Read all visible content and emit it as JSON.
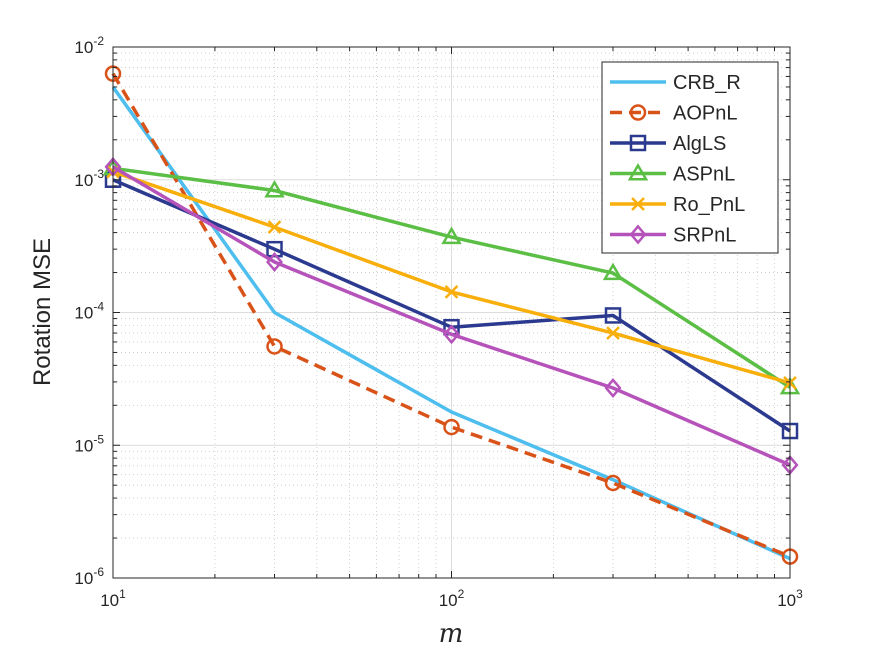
{
  "chart_data": {
    "type": "line",
    "xscale": "log",
    "yscale": "log",
    "xlabel": "m",
    "ylabel": "Rotation MSE",
    "xlim": [
      10,
      1000
    ],
    "ylim": [
      1e-06,
      0.01
    ],
    "grid": true,
    "legend_position": "top-right",
    "x_major_ticks": [
      {
        "value": 10,
        "base": "10",
        "exp": "1"
      },
      {
        "value": 100,
        "base": "10",
        "exp": "2"
      },
      {
        "value": 1000,
        "base": "10",
        "exp": "3"
      }
    ],
    "y_major_ticks": [
      {
        "value": 1e-06,
        "base": "10",
        "exp": "-6"
      },
      {
        "value": 1e-05,
        "base": "10",
        "exp": "-5"
      },
      {
        "value": 0.0001,
        "base": "10",
        "exp": "-4"
      },
      {
        "value": 0.001,
        "base": "10",
        "exp": "-3"
      },
      {
        "value": 0.01,
        "base": "10",
        "exp": "-2"
      }
    ],
    "x": [
      10,
      30,
      100,
      300,
      1000
    ],
    "series": [
      {
        "name": "CRB_R",
        "color": "#4DBEEE",
        "dash": "solid",
        "marker": "none",
        "values": [
          0.005,
          0.0001,
          1.78e-05,
          5.5e-06,
          1.4e-06
        ]
      },
      {
        "name": "AOPnL",
        "color": "#D95319",
        "dash": "dashed",
        "marker": "circle",
        "values": [
          0.0063,
          5.55e-05,
          1.37e-05,
          5.2e-06,
          1.45e-06
        ]
      },
      {
        "name": "AlgLS",
        "color": "#2B3A8F",
        "dash": "solid",
        "marker": "square",
        "values": [
          0.001,
          0.0003,
          7.75e-05,
          9.5e-05,
          1.28e-05
        ]
      },
      {
        "name": "ASPnL",
        "color": "#5BBE45",
        "dash": "solid",
        "marker": "triangle",
        "values": [
          0.00122,
          0.00083,
          0.00037,
          0.000198,
          2.73e-05
        ]
      },
      {
        "name": "Ro_PnL",
        "color": "#F8AE0B",
        "dash": "solid",
        "marker": "x",
        "values": [
          0.00115,
          0.00044,
          0.000143,
          7e-05,
          2.95e-05
        ]
      },
      {
        "name": "SRPnL",
        "color": "#B653BB",
        "dash": "solid",
        "marker": "diamond",
        "values": [
          0.00125,
          0.00024,
          6.85e-05,
          2.7e-05,
          7.1e-06
        ]
      }
    ]
  }
}
